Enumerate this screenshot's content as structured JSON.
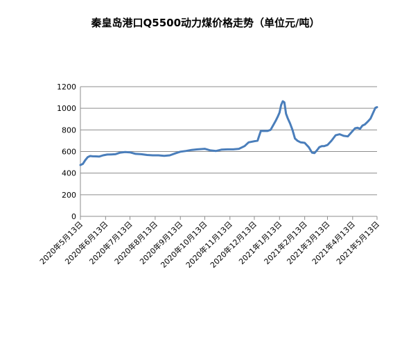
{
  "chart_data": {
    "type": "line",
    "title": "秦皇岛港口Q5500动力煤价格走势（单位元/吨）",
    "xlabel": "",
    "ylabel": "",
    "ylim": [
      0,
      1200
    ],
    "yticks": [
      0,
      200,
      400,
      600,
      800,
      1000,
      1200
    ],
    "xlim": [
      "2020-05-13",
      "2021-05-13"
    ],
    "x_tick_labels": [
      "2020年5月13日",
      "2020年6月13日",
      "2020年7月13日",
      "2020年8月13日",
      "2020年9月13日",
      "2020年10月13日",
      "2020年11月13日",
      "2020年12月13日",
      "2021年1月13日",
      "2021年2月13日",
      "2021年3月13日",
      "2021年4月13日",
      "2021年5月13日"
    ],
    "grid": "horizontal",
    "legend": "none",
    "color": "#4a7ebb",
    "series": [
      {
        "x": [
          "2020-05-13",
          "2020-05-16",
          "2020-05-19",
          "2020-05-22",
          "2020-05-25",
          "2020-05-28",
          "2020-06-01",
          "2020-06-05",
          "2020-06-10",
          "2020-06-15",
          "2020-06-20",
          "2020-06-25",
          "2020-07-01",
          "2020-07-07",
          "2020-07-13",
          "2020-07-20",
          "2020-07-27",
          "2020-08-03",
          "2020-08-10",
          "2020-08-17",
          "2020-08-24",
          "2020-08-31",
          "2020-09-07",
          "2020-09-13",
          "2020-09-20",
          "2020-09-27",
          "2020-10-04",
          "2020-10-13",
          "2020-10-20",
          "2020-10-27",
          "2020-11-03",
          "2020-11-10",
          "2020-11-17",
          "2020-11-24",
          "2020-12-01",
          "2020-12-06",
          "2020-12-13",
          "2020-12-17",
          "2020-12-21",
          "2020-12-25",
          "2020-12-29",
          "2021-01-02",
          "2021-01-05",
          "2021-01-08",
          "2021-01-11",
          "2021-01-13",
          "2021-01-15",
          "2021-01-17",
          "2021-01-19",
          "2021-01-21",
          "2021-01-23",
          "2021-01-26",
          "2021-01-29",
          "2021-02-01",
          "2021-02-04",
          "2021-02-08",
          "2021-02-13",
          "2021-02-18",
          "2021-02-22",
          "2021-02-25",
          "2021-02-28",
          "2021-03-03",
          "2021-03-06",
          "2021-03-09",
          "2021-03-13",
          "2021-03-18",
          "2021-03-23",
          "2021-03-28",
          "2021-04-02",
          "2021-04-07",
          "2021-04-13",
          "2021-04-16",
          "2021-04-19",
          "2021-04-22",
          "2021-04-25",
          "2021-04-28",
          "2021-05-02",
          "2021-05-05",
          "2021-05-08",
          "2021-05-11",
          "2021-05-13"
        ],
        "y": [
          475,
          485,
          520,
          548,
          558,
          556,
          555,
          553,
          565,
          572,
          573,
          575,
          590,
          595,
          592,
          578,
          575,
          568,
          565,
          565,
          560,
          565,
          583,
          598,
          605,
          615,
          620,
          625,
          610,
          605,
          618,
          620,
          620,
          625,
          650,
          685,
          695,
          700,
          790,
          790,
          790,
          800,
          840,
          880,
          925,
          960,
          1030,
          1065,
          1055,
          950,
          910,
          860,
          800,
          720,
          700,
          685,
          680,
          640,
          590,
          585,
          610,
          640,
          650,
          650,
          660,
          700,
          750,
          760,
          745,
          740,
          790,
          815,
          820,
          810,
          840,
          850,
          880,
          905,
          955,
          1005,
          1010
        ]
      }
    ]
  }
}
